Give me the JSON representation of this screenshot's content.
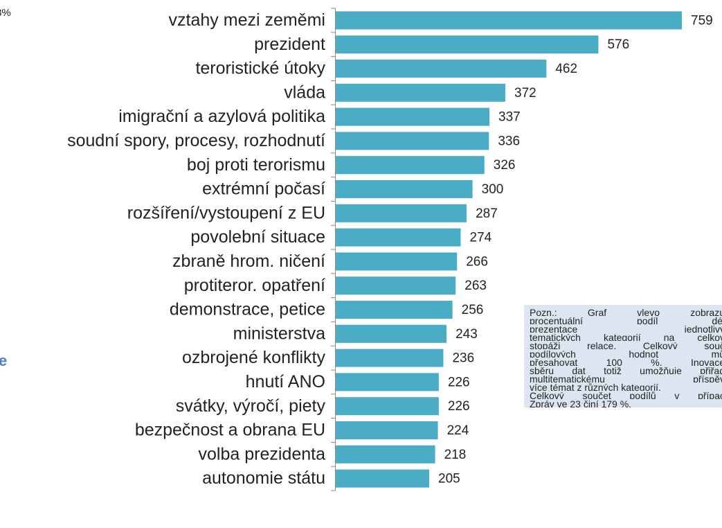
{
  "fragments": {
    "top_left": "8%",
    "left_blue": "e"
  },
  "chart_data": {
    "type": "bar",
    "orientation": "horizontal",
    "categories": [
      "vztahy mezi zeměmi",
      "prezident",
      "teroristické útoky",
      "vláda",
      "imigrační a azylová politika",
      "soudní spory, procesy, rozhodnutí",
      "boj proti terorismu",
      "extrémní počasí",
      "rozšíření/vystoupení z EU",
      "povolební situace",
      "zbraně hrom. ničení",
      "protiteror. opatření",
      "demonstrace, petice",
      "ministerstva",
      "ozbrojené konflikty",
      "hnutí ANO",
      "svátky, výročí, piety",
      "bezpečnost a obrana EU",
      "volba prezidenta",
      "autonomie státu"
    ],
    "values": [
      759,
      576,
      462,
      372,
      337,
      336,
      326,
      300,
      287,
      274,
      266,
      263,
      256,
      243,
      236,
      226,
      226,
      224,
      218,
      205
    ],
    "color": "#4bacc6",
    "xlim": [
      0,
      759
    ]
  },
  "note": {
    "lines": [
      "Pozn.: Graf vlevo zobrazu",
      "procentuální podíl dél",
      "prezentace jednotlivý",
      "tematických kategorií na celkov",
      "stopáži relace. Celkový souč",
      "podílových hodnot mů",
      "přesahovat 100 %. Inovace",
      "sběru dat totiž umožňuje přiřad",
      "multitematickému příspěv",
      "více témat z různých kategorií.",
      "Celkový součet podílů v přípac",
      "Zpráv ve 23 činí 179 %."
    ]
  }
}
